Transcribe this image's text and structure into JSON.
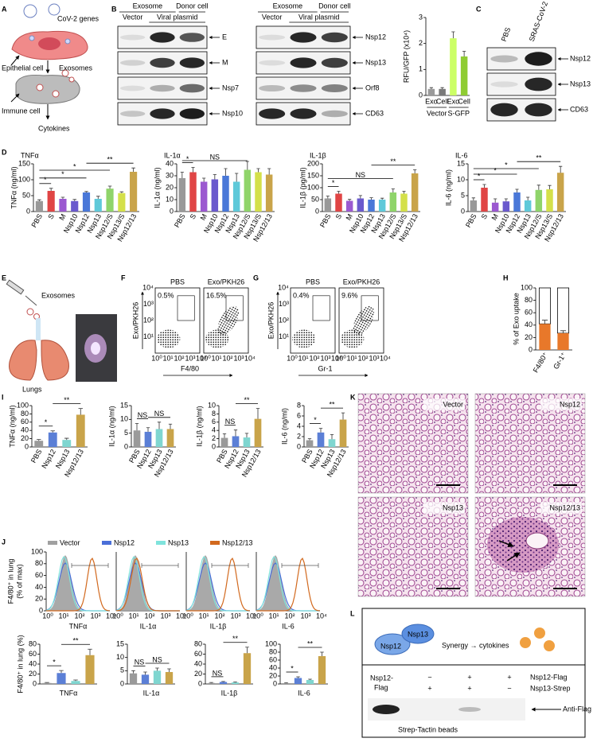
{
  "panels": {
    "letters": [
      "A",
      "B",
      "C",
      "D",
      "E",
      "F",
      "G",
      "H",
      "I",
      "J",
      "K",
      "L"
    ],
    "A": {
      "labels": [
        "CoV-2 genes",
        "Epithelial cell",
        "Exosomes",
        "Immune cell",
        "Cytokines"
      ]
    },
    "B": {
      "blot1": {
        "groups": [
          "Exosome",
          "Donor cell"
        ],
        "lanes": [
          "Vector",
          "Viral plasmid"
        ],
        "bands": [
          "E",
          "M",
          "Nsp7",
          "Nsp10"
        ]
      },
      "blot2": {
        "groups": [
          "Exosome",
          "Donor cell"
        ],
        "lanes": [
          "Vector",
          "Viral plasmid"
        ],
        "bands": [
          "Nsp12",
          "Nsp13",
          "Orf8",
          "CD63"
        ]
      }
    },
    "C": {
      "lanes": [
        "PBS",
        "SRAS-CoV-2"
      ],
      "bands": [
        "Nsp12",
        "Nsp13",
        "CD63"
      ]
    },
    "E": {
      "labels": [
        "Exosomes",
        "Lungs"
      ]
    },
    "F": {
      "plots": [
        {
          "title": "PBS",
          "gate": "0.5%"
        },
        {
          "title": "Exo/PKH26",
          "gate": "16.5%"
        }
      ],
      "xlabel": "F4/80",
      "ylabel": "Exo/PKH26",
      "ticks": [
        "10⁰",
        "10¹",
        "10²",
        "10³",
        "10⁴"
      ]
    },
    "G": {
      "plots": [
        {
          "title": "PBS",
          "gate": "0.4%"
        },
        {
          "title": "Exo/PKH26",
          "gate": "9.6%"
        }
      ],
      "xlabel": "Gr-1",
      "ylabel": "Exo/PKH26",
      "ticks": [
        "10⁰",
        "10¹",
        "10²",
        "10³",
        "10⁴"
      ]
    },
    "J": {
      "legend": [
        "Vector",
        "Nsp12",
        "Nsp13",
        "Nsp12/13"
      ],
      "colors": [
        "#a0a0a0",
        "#4a6fd8",
        "#7fe3dc",
        "#d2691e"
      ],
      "ylabel": [
        "F4/80⁺ in lung",
        "(% of max)"
      ],
      "ylim": [
        0,
        100
      ],
      "yticks": [
        0,
        20,
        40,
        60,
        80,
        100
      ],
      "xticks": [
        "10⁰",
        "10¹",
        "10²",
        "10³",
        "10⁴"
      ],
      "markers": [
        "TNFα",
        "IL-1α",
        "IL-1β",
        "IL-6"
      ]
    },
    "K": {
      "labels": [
        "Vector",
        "Nsp12",
        "Nsp13",
        "Nsp12/13"
      ]
    },
    "L": {
      "diagram": [
        "Nsp12",
        "Nsp13",
        "Synergy → cytokines"
      ],
      "row_left": [
        "Nsp12-",
        "Flag"
      ],
      "rows": [
        {
          "name": "Nsp12-Flag",
          "signs": [
            "−",
            "+",
            "+"
          ]
        },
        {
          "name": "Nsp13-Strep",
          "signs": [
            "+",
            "+",
            "−"
          ]
        }
      ],
      "band": "Anti-Flag",
      "footer": "Strep-Tactin beads"
    }
  },
  "chart_data": [
    {
      "type": "bar",
      "ylabel": "RFU/GFP (x10⁴)",
      "categories": [
        "Exo",
        "Cell",
        "Exo",
        "Cell"
      ],
      "groups": [
        "Vector",
        "S-GFP"
      ],
      "values": [
        0.25,
        0.25,
        2.2,
        1.5
      ],
      "errors": [
        0.05,
        0.05,
        0.25,
        0.2
      ],
      "colors": [
        "#9a9a9a",
        "#7a7a7a",
        "#ccff66",
        "#8fcc33"
      ],
      "ylim": [
        0,
        3
      ],
      "yticks": [
        0,
        1,
        2,
        3
      ]
    },
    {
      "type": "bar",
      "title": "TNFα",
      "ylabel": "TNFα (ng/ml)",
      "categories": [
        "PBS",
        "S",
        "M",
        "Nsp10",
        "Nsp12",
        "Nsp13",
        "Nsp12/S",
        "Nsp13/S",
        "Nsp12/13"
      ],
      "values": [
        33,
        65,
        40,
        33,
        60,
        40,
        72,
        58,
        125
      ],
      "errors": [
        4,
        8,
        5,
        5,
        3,
        8,
        8,
        4,
        12
      ],
      "colors": [
        "#999999",
        "#e04545",
        "#9b59d0",
        "#6a5acd",
        "#4a78d8",
        "#5fc9d9",
        "#8fd46a",
        "#d4e04a",
        "#c9a44a"
      ],
      "ylim": [
        0,
        150
      ],
      "yticks": [
        0,
        50,
        100,
        150
      ],
      "annotations": [
        "*",
        "*",
        "*",
        "**"
      ]
    },
    {
      "type": "bar",
      "title": "IL-1α",
      "ylabel": "IL-1α (ng/ml)",
      "categories": [
        "PBS",
        "S",
        "M",
        "Nsp10",
        "Nsp12",
        "Nsp13",
        "Nsp12/S",
        "Nsp13/S",
        "Nsp12/13"
      ],
      "values": [
        28,
        33,
        25,
        27,
        30,
        25,
        35,
        33,
        31
      ],
      "errors": [
        5,
        4,
        3,
        4,
        6,
        7,
        7,
        3,
        5
      ],
      "colors": [
        "#999999",
        "#e04545",
        "#9b59d0",
        "#6a5acd",
        "#4a78d8",
        "#5fc9d9",
        "#8fd46a",
        "#d4e04a",
        "#c9a44a"
      ],
      "ylim": [
        0,
        40
      ],
      "yticks": [
        0,
        10,
        20,
        30,
        40
      ],
      "annotations": [
        "*",
        "NS"
      ]
    },
    {
      "type": "bar",
      "title": "IL-1β",
      "ylabel": "IL-1β (pg/ml)",
      "categories": [
        "PBS",
        "S",
        "M",
        "Nsp10",
        "Nsp12",
        "Nsp13",
        "Nsp12/S",
        "Nsp13/S",
        "Nsp12/13"
      ],
      "values": [
        55,
        75,
        45,
        55,
        50,
        50,
        80,
        75,
        160
      ],
      "errors": [
        10,
        10,
        6,
        12,
        8,
        6,
        15,
        10,
        15
      ],
      "colors": [
        "#999999",
        "#e04545",
        "#9b59d0",
        "#6a5acd",
        "#4a78d8",
        "#5fc9d9",
        "#8fd46a",
        "#d4e04a",
        "#c9a44a"
      ],
      "ylim": [
        0,
        200
      ],
      "yticks": [
        0,
        50,
        100,
        150,
        200
      ],
      "annotations": [
        "*",
        "NS",
        "**"
      ]
    },
    {
      "type": "bar",
      "title": "IL-6",
      "ylabel": "IL-6 (ng/ml)",
      "categories": [
        "PBS",
        "S",
        "M",
        "Nsp10",
        "Nsp12",
        "Nsp13",
        "Nsp12/S",
        "Nsp13/S",
        "Nsp12/13"
      ],
      "values": [
        3.5,
        7.5,
        2.8,
        3.2,
        6,
        3.5,
        6.8,
        7,
        12.2
      ],
      "errors": [
        0.8,
        1,
        1.2,
        0.8,
        1,
        1,
        1.5,
        1.2,
        2
      ],
      "colors": [
        "#999999",
        "#e04545",
        "#9b59d0",
        "#6a5acd",
        "#4a78d8",
        "#5fc9d9",
        "#8fd46a",
        "#d4e04a",
        "#c9a44a"
      ],
      "ylim": [
        0,
        15
      ],
      "yticks": [
        0,
        5,
        10,
        15
      ],
      "annotations": [
        "*",
        "*",
        "*",
        "**"
      ]
    },
    {
      "type": "bar",
      "ylabel": "% of Exo uptake",
      "categories": [
        "F4/80⁺",
        "Gr-1⁺"
      ],
      "values": [
        42,
        27
      ],
      "errors": [
        6,
        4
      ],
      "colors": [
        "#e8782a",
        "#e8782a"
      ],
      "ylim": [
        0,
        100
      ],
      "yticks": [
        0,
        20,
        40,
        60,
        80,
        100
      ]
    },
    {
      "type": "bar",
      "ylabel": "TNFα (ng/ml)",
      "categories": [
        "PBS",
        "Nsp12",
        "Nsp13",
        "Nsp12/13"
      ],
      "values": [
        15,
        35,
        17,
        78
      ],
      "errors": [
        3,
        4,
        4,
        15
      ],
      "colors": [
        "#9a9a9a",
        "#5b7fd6",
        "#7fd6d0",
        "#c9a44a"
      ],
      "ylim": [
        0,
        100
      ],
      "yticks": [
        0,
        20,
        40,
        60,
        80,
        100
      ],
      "annotations": [
        "*",
        "**"
      ]
    },
    {
      "type": "bar",
      "ylabel": "IL-1α (ng/ml)",
      "categories": [
        "PBS",
        "Nsp12",
        "Nsp13",
        "Nsp12/13"
      ],
      "values": [
        6,
        5.5,
        6.5,
        6.5
      ],
      "errors": [
        2.5,
        1.5,
        2.5,
        1.8
      ],
      "colors": [
        "#9a9a9a",
        "#5b7fd6",
        "#7fd6d0",
        "#c9a44a"
      ],
      "ylim": [
        0,
        15
      ],
      "yticks": [
        0,
        5,
        10,
        15
      ],
      "annotations": [
        "NS",
        "NS"
      ]
    },
    {
      "type": "bar",
      "ylabel": "IL-1β (ng/ml)",
      "categories": [
        "PBS",
        "Nsp12",
        "Nsp13",
        "Nsp12/13"
      ],
      "values": [
        2.2,
        2.6,
        2.3,
        6.8
      ],
      "errors": [
        1,
        1.5,
        1,
        2.5
      ],
      "colors": [
        "#9a9a9a",
        "#5b7fd6",
        "#7fd6d0",
        "#c9a44a"
      ],
      "ylim": [
        0,
        10
      ],
      "yticks": [
        0,
        2,
        4,
        6,
        8,
        10
      ],
      "annotations": [
        "NS",
        "**"
      ]
    },
    {
      "type": "bar",
      "ylabel": "IL-6 (ng/ml)",
      "categories": [
        "PBS",
        "Nsp12",
        "Nsp13",
        "Nsp12/13"
      ],
      "values": [
        1.3,
        2.8,
        1.5,
        5.3
      ],
      "errors": [
        0.3,
        0.8,
        0.9,
        1.3
      ],
      "colors": [
        "#9a9a9a",
        "#5b7fd6",
        "#7fd6d0",
        "#c9a44a"
      ],
      "ylim": [
        0,
        8
      ],
      "yticks": [
        0,
        2,
        4,
        6,
        8
      ],
      "annotations": [
        "*",
        "**"
      ]
    },
    {
      "type": "bar",
      "title": "TNFα",
      "ylabel": "F4/80⁺ in lung (%)",
      "categories": [
        null,
        null,
        null,
        null
      ],
      "values": [
        2,
        22,
        6,
        58
      ],
      "errors": [
        1,
        5,
        2,
        12
      ],
      "colors": [
        "#9a9a9a",
        "#5b7fd6",
        "#7fd6d0",
        "#c9a44a"
      ],
      "ylim": [
        0,
        80
      ],
      "yticks": [
        0,
        20,
        40,
        60,
        80
      ],
      "annotations": [
        "*",
        "**"
      ]
    },
    {
      "type": "bar",
      "title": "IL-1α",
      "categories": [
        null,
        null,
        null,
        null
      ],
      "values": [
        4,
        3.5,
        5,
        4.5
      ],
      "errors": [
        1,
        1,
        1,
        1.2
      ],
      "colors": [
        "#9a9a9a",
        "#5b7fd6",
        "#7fd6d0",
        "#c9a44a"
      ],
      "ylim": [
        0,
        15
      ],
      "yticks": [
        0,
        5,
        10,
        15
      ],
      "annotations": [
        "NS",
        "NS"
      ]
    },
    {
      "type": "bar",
      "title": "IL-1β",
      "categories": [
        null,
        null,
        null,
        null
      ],
      "values": [
        2,
        4,
        3,
        62
      ],
      "errors": [
        1,
        1,
        1,
        12
      ],
      "colors": [
        "#9a9a9a",
        "#5b7fd6",
        "#7fd6d0",
        "#c9a44a"
      ],
      "ylim": [
        0,
        80
      ],
      "yticks": [
        0,
        20,
        40,
        60,
        80
      ],
      "annotations": [
        "NS",
        "**"
      ]
    },
    {
      "type": "bar",
      "title": "IL-6",
      "categories": [
        null,
        null,
        null,
        null
      ],
      "values": [
        2,
        15,
        10,
        70
      ],
      "errors": [
        1,
        3,
        2,
        10
      ],
      "colors": [
        "#9a9a9a",
        "#5b7fd6",
        "#7fd6d0",
        "#c9a44a"
      ],
      "ylim": [
        0,
        100
      ],
      "yticks": [
        0,
        20,
        40,
        60,
        80,
        100
      ],
      "annotations": [
        "*",
        "**"
      ]
    }
  ]
}
